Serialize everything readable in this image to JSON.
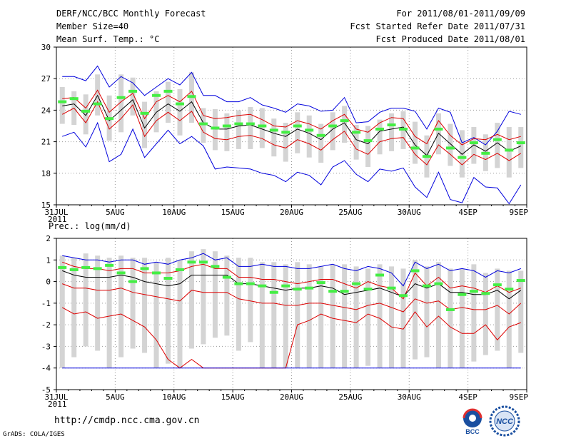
{
  "header": {
    "title": "DERF/NCC/BCC Monthly Forecast",
    "member_size": "Member Size=40",
    "variable_label": "Mean Surf. Temp.: °C",
    "period": "For 2011/08/01-2011/09/09",
    "fcst_started": "Fcst Started Refer Date 2011/07/31",
    "fcst_produced": "Fcst Produced Date 2011/08/01"
  },
  "footer": {
    "url": "http://cmdp.ncc.cma.gov.cn",
    "grads": "GrADS: COLA/IGES",
    "logo_left_text": "BCC",
    "logo_right_text": "NCC"
  },
  "colors": {
    "envelope": "#0000dd",
    "spread": "#dd0000",
    "mean": "#000000",
    "box": "#d4d4d4",
    "marker": "#44ee44",
    "grid": "#999999"
  },
  "chart_data": [
    {
      "type": "line",
      "title": "Mean Surf. Temp.: °C",
      "ylim": [
        15,
        30
      ],
      "yticks": [
        15,
        18,
        21,
        24,
        27,
        30
      ],
      "ytick_labels": [
        "15",
        "18",
        "21",
        "24",
        "27",
        "30"
      ],
      "xlim": [
        0,
        40
      ],
      "xticks": [
        0,
        5,
        10,
        15,
        20,
        25,
        30,
        35,
        40
      ],
      "xtick_labels": [
        "31JUL",
        "5AUG",
        "10AUG",
        "15AUG",
        "20AUG",
        "25AUG",
        "30AUG",
        "4SEP",
        "9SEP"
      ],
      "xtick_sub": "2011",
      "grid": true,
      "series": [
        {
          "name": "max",
          "color": "blue",
          "values": [
            27.2,
            27.2,
            26.8,
            28.2,
            26.2,
            27.2,
            26.6,
            25.4,
            26.2,
            27,
            26.4,
            27.6,
            25.4,
            25.4,
            24.8,
            24.8,
            25.2,
            24.5,
            24.2,
            23.8,
            24.6,
            24.4,
            23.9,
            24,
            25.2,
            22.8,
            22.9,
            23.8,
            24.2,
            24.2,
            23.9,
            22.2,
            24.2,
            23.8,
            20.9,
            21.4,
            20.7,
            22,
            23.9,
            23.6
          ]
        },
        {
          "name": "upper",
          "color": "red",
          "values": [
            25.1,
            25.2,
            24.2,
            25.9,
            23.8,
            24.8,
            25.6,
            23.2,
            24.8,
            25.4,
            24.8,
            25.8,
            23.5,
            23.2,
            23.3,
            23.5,
            23.6,
            23.1,
            22.5,
            22.4,
            23,
            22.7,
            22.2,
            23,
            23.6,
            22.2,
            21.9,
            22.8,
            23.3,
            23.2,
            21.5,
            20.8,
            23,
            21.6,
            20.7,
            21.3,
            21.2,
            21.7,
            21.2,
            21.5
          ]
        },
        {
          "name": "mean",
          "color": "black",
          "values": [
            24.4,
            24.6,
            23.5,
            25.4,
            23,
            24,
            25,
            22.3,
            23.8,
            24.6,
            23.9,
            24.8,
            22.8,
            22.2,
            22.2,
            22.5,
            22.6,
            22.2,
            21.8,
            21.5,
            22.2,
            21.8,
            21.2,
            22.2,
            22.8,
            21.2,
            20.8,
            22,
            22.2,
            22.4,
            20.7,
            19.7,
            21.8,
            20.8,
            19.8,
            20.7,
            20.1,
            20.9,
            20.1,
            20.6
          ]
        },
        {
          "name": "lower",
          "color": "red",
          "values": [
            23.6,
            24.2,
            22.8,
            24.8,
            22.2,
            23.2,
            24.5,
            21.5,
            23,
            23.8,
            23,
            23.9,
            21.9,
            21.3,
            21.2,
            21.5,
            21.6,
            21.3,
            20.7,
            20.4,
            21.2,
            20.8,
            20.2,
            21.2,
            22,
            20.3,
            19.8,
            21,
            21.3,
            21.4,
            19.8,
            18.8,
            20.7,
            19.8,
            18.8,
            19.8,
            19.3,
            19.9,
            19.2,
            19.9
          ]
        },
        {
          "name": "min",
          "color": "blue",
          "values": [
            21.5,
            21.9,
            20.5,
            22.8,
            19.1,
            19.8,
            22.2,
            19.5,
            20.8,
            22.1,
            20.8,
            21.5,
            20.6,
            18.4,
            18.6,
            18.5,
            18.4,
            18,
            17.8,
            17.2,
            18.1,
            17.8,
            16.9,
            18.6,
            19.2,
            17.9,
            17.2,
            18.4,
            18.2,
            18.5,
            16.7,
            15.7,
            18.1,
            15.5,
            15.2,
            17.6,
            16.7,
            16.6,
            15.1,
            16.9
          ]
        }
      ],
      "boxes": {
        "low": [
          22.7,
          22.6,
          21.7,
          23.5,
          21.1,
          21.9,
          23.5,
          20.4,
          21.9,
          22.8,
          21.6,
          22.8,
          20.9,
          20.2,
          20.1,
          20.3,
          20.3,
          20.4,
          19.6,
          19.1,
          19.9,
          19.5,
          19,
          20.2,
          20.9,
          19.3,
          18.6,
          19.8,
          20.1,
          20.3,
          18.9,
          17.6,
          19.8,
          18.7,
          17.6,
          18.9,
          18.2,
          18.5,
          17.6,
          18.5
        ],
        "high": [
          26.2,
          25.8,
          25.5,
          27.4,
          25.4,
          27.4,
          27.1,
          24.8,
          25.8,
          26.7,
          26,
          27.6,
          24.2,
          24.1,
          23.7,
          24,
          24.3,
          24.2,
          23.2,
          22.8,
          23.8,
          23.5,
          22.7,
          23.8,
          24.4,
          22.6,
          22.5,
          23.1,
          23.7,
          23.9,
          22.9,
          21.6,
          23.7,
          22.7,
          22.1,
          22.4,
          21.7,
          22.8,
          22.4,
          22.4
        ]
      },
      "markers": [
        24.8,
        25.1,
        23.9,
        24.6,
        23.2,
        25.2,
        25.8,
        23.7,
        25.4,
        25.8,
        24.6,
        25.3,
        22.7,
        22.3,
        22.5,
        22.7,
        22.7,
        22.5,
        22.1,
        21.9,
        22.5,
        22.1,
        21.6,
        22.5,
        23,
        21.9,
        21.1,
        22.2,
        22.6,
        22.2,
        20.4,
        19.6,
        22.2,
        20.4,
        19.5,
        20.9,
        19.9,
        21.2,
        20.2,
        20.9
      ]
    },
    {
      "type": "line",
      "title": "Prec.: log(mm/d)",
      "ylim": [
        -5,
        2
      ],
      "yticks": [
        -5,
        -4,
        -3,
        -2,
        -1,
        0,
        1,
        2
      ],
      "ytick_labels": [
        "-5",
        "-4",
        "-3",
        "-2",
        "-1",
        "0",
        "1",
        "2"
      ],
      "xlim": [
        0,
        40
      ],
      "xticks": [
        0,
        5,
        10,
        15,
        20,
        25,
        30,
        35,
        40
      ],
      "xtick_labels": [
        "31JUL",
        "5AUG",
        "10AUG",
        "15AUG",
        "20AUG",
        "25AUG",
        "30AUG",
        "4SEP",
        "9SEP"
      ],
      "xtick_sub": "2011",
      "grid": true,
      "series": [
        {
          "name": "max",
          "color": "blue",
          "values": [
            1.2,
            1.1,
            1,
            1,
            0.9,
            1,
            1,
            0.8,
            0.9,
            0.8,
            1,
            1.1,
            1.3,
            1,
            1.1,
            0.7,
            0.7,
            0.8,
            0.7,
            0.7,
            0.6,
            0.6,
            0.7,
            0.8,
            0.6,
            0.5,
            0.7,
            0.6,
            0.4,
            -0.2,
            0.9,
            0.6,
            0.8,
            0.5,
            0.6,
            0.5,
            0.2,
            0.5,
            0.4,
            0.6
          ]
        },
        {
          "name": "upper",
          "color": "red",
          "values": [
            0.9,
            0.7,
            0.6,
            0.6,
            0.5,
            0.6,
            0.6,
            0.4,
            0.4,
            0.4,
            0.5,
            0.7,
            0.8,
            0.6,
            0.6,
            0.2,
            0.2,
            0.1,
            0.1,
            0,
            -0.1,
            0,
            0.1,
            0.1,
            -0.1,
            -0.3,
            0,
            -0.2,
            -0.3,
            -0.8,
            0.4,
            -0.2,
            0.2,
            -0.3,
            -0.2,
            -0.3,
            -0.5,
            -0.2,
            -0.5,
            -0.3
          ]
        },
        {
          "name": "mean",
          "color": "black",
          "values": [
            0.5,
            0.3,
            0.2,
            0.2,
            0.2,
            0.3,
            0.2,
            0,
            -0.1,
            -0.2,
            -0.1,
            0.3,
            0.3,
            0.3,
            0.3,
            -0.1,
            -0.1,
            -0.2,
            -0.3,
            -0.4,
            -0.3,
            -0.3,
            -0.2,
            -0.3,
            -0.6,
            -0.5,
            -0.4,
            -0.3,
            -0.5,
            -0.7,
            -0.1,
            -0.3,
            -0.1,
            -0.5,
            -0.5,
            -0.6,
            -0.6,
            -0.4,
            -0.8,
            -0.4
          ]
        },
        {
          "name": "lower",
          "color": "red",
          "values": [
            -0.1,
            -0.3,
            -0.3,
            -0.4,
            -0.4,
            -0.3,
            -0.5,
            -0.6,
            -0.7,
            -0.8,
            -0.9,
            -0.4,
            -0.5,
            -0.5,
            -0.5,
            -0.8,
            -0.9,
            -1,
            -1,
            -1.1,
            -1.1,
            -1,
            -1,
            -1.1,
            -1.2,
            -1.3,
            -1.1,
            -1,
            -1.2,
            -1.4,
            -0.8,
            -1,
            -0.9,
            -1.3,
            -1.2,
            -1.3,
            -1.3,
            -1.1,
            -1.5,
            -1
          ]
        },
        {
          "name": "min",
          "color": "red",
          "values": [
            -1.2,
            -1.5,
            -1.4,
            -1.7,
            -1.6,
            -1.5,
            -1.8,
            -2.1,
            -2.7,
            -3.6,
            -4,
            -3.6,
            -4,
            -4,
            -4,
            -4,
            -4,
            -4,
            -4,
            -4,
            -2,
            -1.8,
            -1.5,
            -1.7,
            -1.8,
            -1.9,
            -1.5,
            -1.7,
            -2.1,
            -2.2,
            -1.4,
            -2.1,
            -1.6,
            -2.1,
            -2.4,
            -2.4,
            -2,
            -2.7,
            -2.1,
            -1.9
          ]
        },
        {
          "name": "floor",
          "color": "blue",
          "values": [
            -4,
            -4,
            -4,
            -4,
            -4,
            -4,
            -4,
            -4,
            -4,
            -4,
            -4,
            -4,
            -4,
            -4,
            -4,
            -4,
            -4,
            -4,
            -4,
            -4,
            -4,
            -4,
            -4,
            -4,
            -4,
            -4,
            -4,
            -4,
            -4,
            -4,
            -4,
            -4,
            -4,
            -4,
            -4,
            -4,
            -4,
            -4,
            -4,
            -4
          ]
        }
      ],
      "boxes": {
        "low": [
          -4,
          -3.5,
          -3,
          -3.2,
          -4,
          -3.5,
          -3.1,
          -3.3,
          -4,
          -3.8,
          -4,
          -3.1,
          -2.9,
          -2.6,
          -2.5,
          -3.2,
          -2.8,
          -4,
          -4,
          -4,
          -4,
          -4,
          -4,
          -4,
          -4,
          -4,
          -3.9,
          -4,
          -4,
          -4,
          -3.6,
          -3.5,
          -4,
          -4,
          -4,
          -3.7,
          -3.4,
          -3.2,
          -4,
          -3.3
        ],
        "high": [
          1.2,
          1.1,
          1.3,
          1.2,
          1.1,
          1.2,
          1.1,
          1.1,
          0.9,
          1.1,
          1,
          1.4,
          1.5,
          1.4,
          1.2,
          1.1,
          1.1,
          0.9,
          0.9,
          0.8,
          0.9,
          0.8,
          0.7,
          0.8,
          0.8,
          0.7,
          0.6,
          0.8,
          0.7,
          0.6,
          1,
          0.7,
          0.9,
          0.6,
          0.6,
          0.8,
          0.4,
          0.6,
          0.5,
          0.5
        ]
      },
      "markers": [
        0.65,
        0.55,
        0.65,
        0.6,
        0.75,
        0.4,
        0,
        0.6,
        0.4,
        0.15,
        0.55,
        0.9,
        0.9,
        0.7,
        0.2,
        -0.1,
        -0.1,
        -0.2,
        -0.5,
        -0.2,
        -0.35,
        -0.3,
        -0.05,
        -0.45,
        -0.45,
        -0.1,
        -0.35,
        0.3,
        -0.3,
        -0.65,
        0.5,
        -0.2,
        -0.1,
        -1.3,
        -0.6,
        -0.45,
        -0.55,
        -0.15,
        -0.35,
        0.05
      ]
    }
  ]
}
